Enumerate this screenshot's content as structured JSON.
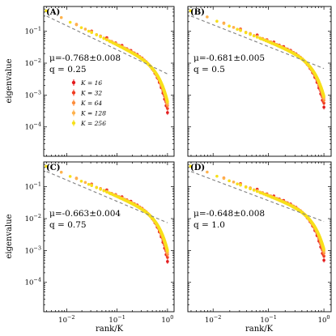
{
  "chart_data": {
    "type": "scatter",
    "xlabel": "rank/K",
    "ylabel": "eigenvalue",
    "xscale": "log",
    "yscale": "log",
    "xlim": [
      0.0035,
      1.35
    ],
    "ylim": [
      1.2e-05,
      0.6
    ],
    "x_ticks": [
      {
        "value": 0.01,
        "label": "10^-2"
      },
      {
        "value": 0.1,
        "label": "10^-1"
      },
      {
        "value": 1,
        "label": "10^0"
      }
    ],
    "y_ticks": [
      {
        "value": 0.0001,
        "label": "10^-4"
      },
      {
        "value": 0.001,
        "label": "10^-3"
      },
      {
        "value": 0.01,
        "label": "10^-2"
      },
      {
        "value": 0.1,
        "label": "10^-1"
      }
    ],
    "legend": {
      "location": "center-left (panel A)",
      "entries": [
        {
          "label": "K = 16",
          "color": "#e31a1c"
        },
        {
          "label": "K = 32",
          "color": "#f03b20"
        },
        {
          "label": "K = 64",
          "color": "#fd8d3c"
        },
        {
          "label": "K = 128",
          "color": "#feb24c"
        },
        {
          "label": "K = 256",
          "color": "#f7e01a"
        }
      ]
    },
    "series_K": [
      16,
      32,
      64,
      128,
      256
    ],
    "fit_line": {
      "color": "#808080",
      "style": "dashed",
      "x_range": [
        0.004,
        1.0
      ],
      "y_at_x_0004": 0.3
    },
    "panels": [
      {
        "label": "(A)",
        "mu": "μ=-0.768±0.008",
        "q": "q = 0.25",
        "mu_value": -0.768,
        "q_value": 0.25,
        "fit_y_at_1": 0.0046
      },
      {
        "label": "(B)",
        "mu": "μ=-0.681±0.005",
        "q": "q = 0.5",
        "mu_value": -0.681,
        "q_value": 0.5,
        "fit_y_at_1": 0.0068
      },
      {
        "label": "(C)",
        "mu": "μ=-0.663±0.004",
        "q": "q = 0.75",
        "mu_value": -0.663,
        "q_value": 0.75,
        "fit_y_at_1": 0.0074
      },
      {
        "label": "(D)",
        "mu": "μ=-0.648±0.008",
        "q": "q = 1.0",
        "mu_value": -0.648,
        "q_value": 1.0,
        "fit_y_at_1": 0.0081
      }
    ]
  }
}
